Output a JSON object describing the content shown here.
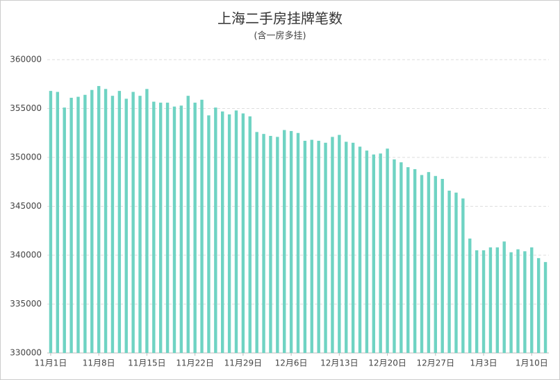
{
  "chart_data": {
    "type": "bar",
    "title": "上海二手房挂牌笔数",
    "subtitle": "(含一房多挂)",
    "categories": [
      "11月1日",
      null,
      null,
      null,
      null,
      null,
      null,
      "11月8日",
      null,
      null,
      null,
      null,
      null,
      null,
      "11月15日",
      null,
      null,
      null,
      null,
      null,
      null,
      "11月22日",
      null,
      null,
      null,
      null,
      null,
      null,
      "11月29日",
      null,
      null,
      null,
      null,
      null,
      null,
      "12月6日",
      null,
      null,
      null,
      null,
      null,
      null,
      "12月13日",
      null,
      null,
      null,
      null,
      null,
      null,
      "12月20日",
      null,
      null,
      null,
      null,
      null,
      null,
      "12月27日",
      null,
      null,
      null,
      null,
      null,
      null,
      "1月3日",
      null,
      null,
      null,
      null,
      null,
      null,
      "1月10日",
      null,
      null
    ],
    "values": [
      356800,
      356700,
      355100,
      356100,
      356200,
      356400,
      356900,
      357300,
      357000,
      356300,
      356800,
      356000,
      356700,
      356300,
      357000,
      355700,
      355600,
      355600,
      355200,
      355300,
      356300,
      355600,
      355900,
      354300,
      355100,
      354700,
      354400,
      354800,
      354500,
      354200,
      352600,
      352400,
      352200,
      352100,
      352800,
      352700,
      352500,
      351700,
      351800,
      351700,
      351500,
      352100,
      352300,
      351600,
      351500,
      351100,
      350700,
      350300,
      350400,
      350900,
      349800,
      349500,
      349000,
      348800,
      348200,
      348500,
      348100,
      347800,
      346600,
      346400,
      345800,
      341700,
      340500,
      340500,
      340800,
      340800,
      341400,
      340300,
      340600,
      340400,
      340800,
      339700,
      339300
    ],
    "color": "#6fd3c3",
    "ylim": [
      330000,
      360000
    ],
    "yticks": [
      330000,
      335000,
      340000,
      345000,
      350000,
      355000,
      360000
    ],
    "grid": true
  }
}
